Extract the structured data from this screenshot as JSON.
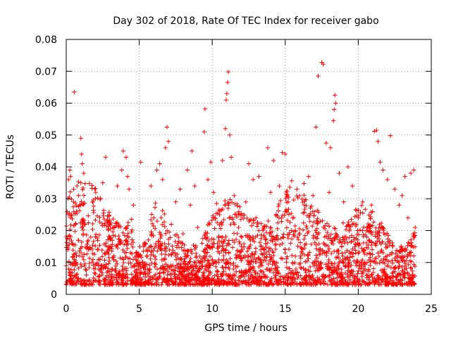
{
  "chart_data": {
    "type": "scatter",
    "title": "Day 302 of 2018, Rate Of TEC Index for receiver gabo",
    "xlabel": "GPS time / hours",
    "ylabel": "ROTI / TECUs",
    "xlim": [
      0,
      25
    ],
    "ylim": [
      0,
      0.08
    ],
    "x_ticks": [
      0,
      5,
      10,
      15,
      20,
      25
    ],
    "x_tick_labels": [
      "0",
      "5",
      "10",
      "15",
      "20",
      "25"
    ],
    "y_ticks": [
      0,
      0.01,
      0.02,
      0.03,
      0.04,
      0.05,
      0.06,
      0.07,
      0.08
    ],
    "y_tick_labels": [
      "0",
      "0.01",
      "0.02",
      "0.03",
      "0.04",
      "0.05",
      "0.06",
      "0.07",
      "0.08"
    ],
    "grid": true,
    "marker": "+",
    "marker_color": "#ff0000",
    "x_range_data": [
      0,
      23.9
    ],
    "series": [
      {
        "name": "ROTI",
        "points": [
          [
            0.0,
            0.009
          ],
          [
            0.1,
            0.014
          ],
          [
            0.15,
            0.036
          ],
          [
            0.25,
            0.039
          ],
          [
            0.3,
            0.037
          ],
          [
            0.35,
            0.025
          ],
          [
            0.5,
            0.029
          ],
          [
            0.55,
            0.0635
          ],
          [
            0.7,
            0.012
          ],
          [
            0.85,
            0.031
          ],
          [
            1.0,
            0.049
          ],
          [
            1.05,
            0.044
          ],
          [
            1.1,
            0.041
          ],
          [
            1.2,
            0.038
          ],
          [
            1.3,
            0.022
          ],
          [
            1.5,
            0.017
          ],
          [
            1.8,
            0.029
          ],
          [
            2.0,
            0.018
          ],
          [
            2.3,
            0.011
          ],
          [
            2.5,
            0.035
          ],
          [
            2.7,
            0.043
          ],
          [
            3.0,
            0.015
          ],
          [
            3.2,
            0.021
          ],
          [
            3.5,
            0.034
          ],
          [
            3.8,
            0.039
          ],
          [
            3.9,
            0.045
          ],
          [
            4.1,
            0.043
          ],
          [
            4.2,
            0.037
          ],
          [
            4.3,
            0.033
          ],
          [
            4.6,
            0.028
          ],
          [
            5.1,
            0.0415
          ],
          [
            5.3,
            0.009
          ],
          [
            5.5,
            0.012
          ],
          [
            5.8,
            0.034
          ],
          [
            6.0,
            0.024
          ],
          [
            6.2,
            0.039
          ],
          [
            6.4,
            0.041
          ],
          [
            6.6,
            0.036
          ],
          [
            6.8,
            0.046
          ],
          [
            6.9,
            0.0525
          ],
          [
            7.0,
            0.048
          ],
          [
            7.2,
            0.022
          ],
          [
            7.5,
            0.029
          ],
          [
            7.8,
            0.033
          ],
          [
            8.0,
            0.019
          ],
          [
            8.3,
            0.039
          ],
          [
            8.5,
            0.028
          ],
          [
            8.6,
            0.045
          ],
          [
            8.8,
            0.034
          ],
          [
            9.0,
            0.021
          ],
          [
            9.3,
            0.016
          ],
          [
            9.45,
            0.051
          ],
          [
            9.5,
            0.0582
          ],
          [
            9.7,
            0.036
          ],
          [
            9.9,
            0.0415
          ],
          [
            10.1,
            0.032
          ],
          [
            10.3,
            0.0285
          ],
          [
            10.5,
            0.025
          ],
          [
            10.7,
            0.042
          ],
          [
            10.9,
            0.052
          ],
          [
            10.95,
            0.061
          ],
          [
            11.0,
            0.063
          ],
          [
            11.05,
            0.0665
          ],
          [
            11.1,
            0.0698
          ],
          [
            11.2,
            0.05
          ],
          [
            11.3,
            0.043
          ],
          [
            11.5,
            0.031
          ],
          [
            11.8,
            0.021
          ],
          [
            12.0,
            0.015
          ],
          [
            12.3,
            0.029
          ],
          [
            12.5,
            0.041
          ],
          [
            12.8,
            0.036
          ],
          [
            13.0,
            0.024
          ],
          [
            13.2,
            0.037
          ],
          [
            13.5,
            0.021
          ],
          [
            13.8,
            0.046
          ],
          [
            14.0,
            0.032
          ],
          [
            14.2,
            0.042
          ],
          [
            14.4,
            0.018
          ],
          [
            14.6,
            0.034
          ],
          [
            14.8,
            0.0445
          ],
          [
            15.0,
            0.044
          ],
          [
            15.2,
            0.029
          ],
          [
            15.5,
            0.024
          ],
          [
            15.8,
            0.033
          ],
          [
            16.0,
            0.019
          ],
          [
            16.3,
            0.028
          ],
          [
            16.6,
            0.037
          ],
          [
            16.9,
            0.031
          ],
          [
            17.1,
            0.0525
          ],
          [
            17.25,
            0.0685
          ],
          [
            17.5,
            0.0728
          ],
          [
            17.6,
            0.0722
          ],
          [
            17.8,
            0.0475
          ],
          [
            18.0,
            0.032
          ],
          [
            18.1,
            0.046
          ],
          [
            18.3,
            0.0545
          ],
          [
            18.35,
            0.058
          ],
          [
            18.4,
            0.0625
          ],
          [
            18.45,
            0.06
          ],
          [
            18.7,
            0.038
          ],
          [
            19.0,
            0.029
          ],
          [
            19.3,
            0.04
          ],
          [
            19.6,
            0.034
          ],
          [
            20.0,
            0.024
          ],
          [
            20.3,
            0.029
          ],
          [
            20.6,
            0.021
          ],
          [
            20.9,
            0.028
          ],
          [
            21.1,
            0.0512
          ],
          [
            21.25,
            0.0515
          ],
          [
            21.35,
            0.048
          ],
          [
            21.5,
            0.0415
          ],
          [
            21.7,
            0.039
          ],
          [
            22.0,
            0.036
          ],
          [
            22.2,
            0.0498
          ],
          [
            22.5,
            0.033
          ],
          [
            22.8,
            0.028
          ],
          [
            23.0,
            0.031
          ],
          [
            23.2,
            0.037
          ],
          [
            23.4,
            0.024
          ],
          [
            23.6,
            0.038
          ],
          [
            23.8,
            0.039
          ],
          [
            23.9,
            0.021
          ]
        ]
      }
    ]
  }
}
